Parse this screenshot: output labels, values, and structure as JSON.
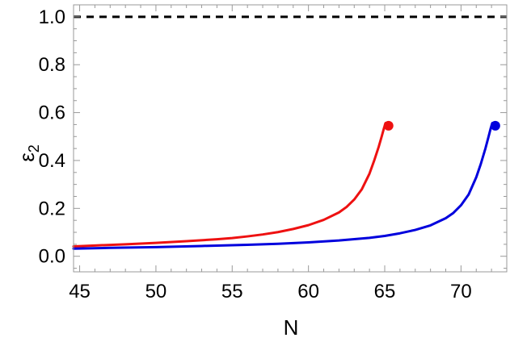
{
  "chart_data": {
    "type": "line",
    "title": "",
    "xlabel": "N",
    "ylabel": {
      "symbol": "ε",
      "subscript": "2"
    },
    "xlim": [
      44.6,
      73.0
    ],
    "ylim": [
      -0.065,
      1.05
    ],
    "grid": false,
    "legend": "none",
    "x_ticks": [
      45,
      50,
      55,
      60,
      65,
      70
    ],
    "x_tick_labels": [
      "45",
      "50",
      "55",
      "60",
      "65",
      "70"
    ],
    "y_ticks": [
      0.0,
      0.2,
      0.4,
      0.6,
      0.8,
      1.0
    ],
    "y_tick_labels": [
      "0.0",
      "0.2",
      "0.4",
      "0.6",
      "0.8",
      "1.0"
    ],
    "reference_line": {
      "y": 1.0,
      "style": "dashed",
      "color": "#000000"
    },
    "series": [
      {
        "color": "#ee1111",
        "x": [
          44.6,
          46,
          48,
          50,
          52,
          54,
          55,
          56,
          57,
          58,
          59,
          60,
          61,
          62,
          62.5,
          63,
          63.5,
          64,
          64.3,
          64.6,
          64.8,
          64.95,
          65.05
        ],
        "y": [
          0.041,
          0.045,
          0.05,
          0.056,
          0.063,
          0.071,
          0.076,
          0.083,
          0.091,
          0.101,
          0.114,
          0.13,
          0.152,
          0.183,
          0.206,
          0.237,
          0.28,
          0.345,
          0.398,
          0.456,
          0.5,
          0.535,
          0.556
        ],
        "endpoint": {
          "x": 65.25,
          "y": 0.545
        }
      },
      {
        "color": "#0000dd",
        "x": [
          44.6,
          47,
          50,
          53,
          56,
          58,
          60,
          62,
          64,
          65,
          66,
          67,
          68,
          69,
          69.5,
          70,
          70.5,
          71,
          71.3,
          71.6,
          71.8,
          71.95,
          72.05
        ],
        "y": [
          0.032,
          0.035,
          0.038,
          0.043,
          0.048,
          0.052,
          0.058,
          0.066,
          0.077,
          0.085,
          0.096,
          0.11,
          0.129,
          0.159,
          0.181,
          0.213,
          0.258,
          0.33,
          0.386,
          0.45,
          0.498,
          0.535,
          0.556
        ],
        "endpoint": {
          "x": 72.25,
          "y": 0.545
        }
      }
    ]
  }
}
